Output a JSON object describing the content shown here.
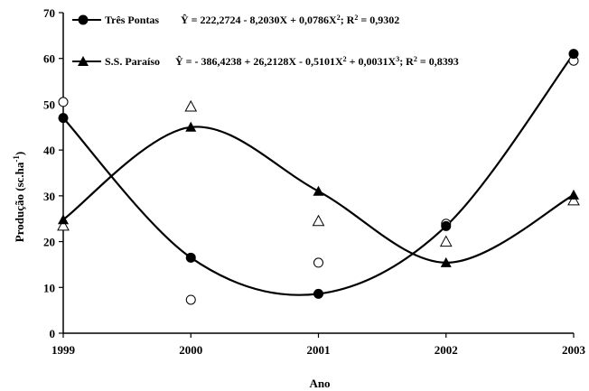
{
  "chart_data": {
    "type": "scatter",
    "xlabel": "Ano",
    "ylabel": "Produção (sc.ha-1)",
    "ylabel_parts": {
      "main": "Produção (sc.ha",
      "sup": "-1",
      "end": ")"
    },
    "xlim": [
      1999,
      2003
    ],
    "ylim": [
      0,
      70
    ],
    "x_ticks": [
      "1999",
      "2000",
      "2001",
      "2002",
      "2003"
    ],
    "y_ticks": [
      "0",
      "10",
      "20",
      "30",
      "40",
      "50",
      "60",
      "70"
    ],
    "legend_position": "top-left",
    "series": [
      {
        "name": "Três Pontas",
        "equation": "Ŷ = 222,2724 - 8,2030X + 0,0786X2; R2 = 0,9302",
        "marker": "circle",
        "fitted": [
          {
            "x": 1999,
            "y": 47.0
          },
          {
            "x": 2000,
            "y": 16.5
          },
          {
            "x": 2001,
            "y": 8.6
          },
          {
            "x": 2002,
            "y": 23.4
          },
          {
            "x": 2003,
            "y": 61.0
          }
        ],
        "observed": [
          {
            "x": 1999,
            "y": 50.5
          },
          {
            "x": 2000,
            "y": 7.3
          },
          {
            "x": 2001,
            "y": 15.4
          },
          {
            "x": 2002,
            "y": 23.9
          },
          {
            "x": 2003,
            "y": 59.5
          }
        ]
      },
      {
        "name": "S.S. Paraíso",
        "equation": "Ŷ = - 386,4238 + 26,2128X - 0,5101X2 + 0,0031X3; R2 = 0,8393",
        "marker": "triangle",
        "fitted": [
          {
            "x": 1999,
            "y": 24.8
          },
          {
            "x": 2000,
            "y": 45.0
          },
          {
            "x": 2001,
            "y": 31.0
          },
          {
            "x": 2002,
            "y": 15.4
          },
          {
            "x": 2003,
            "y": 30.2
          }
        ],
        "observed": [
          {
            "x": 1999,
            "y": 23.5
          },
          {
            "x": 2000,
            "y": 49.5
          },
          {
            "x": 2001,
            "y": 24.5
          },
          {
            "x": 2002,
            "y": 20.0
          },
          {
            "x": 2003,
            "y": 29.0
          }
        ]
      }
    ]
  },
  "legend": {
    "tp_name": "Três Pontas",
    "tp_eq": {
      "yhat": "Ŷ",
      "a": " = 222,2724 - 8,2030X + 0,0786X",
      "s1": "2",
      "b": "; R",
      "s2": "2",
      "c": " = 0,9302"
    },
    "sp_name": "S.S. Paraíso",
    "sp_eq": {
      "yhat": "Ŷ",
      "a": " =  - 386,4238 + 26,2128X - 0,5101X",
      "s1": "2",
      "b": " + 0,0031X",
      "s2": "3",
      "c": "; R",
      "s3": "2",
      "d": " = 0,8393"
    }
  },
  "colors": {
    "ink": "#000000",
    "background": "#ffffff"
  }
}
